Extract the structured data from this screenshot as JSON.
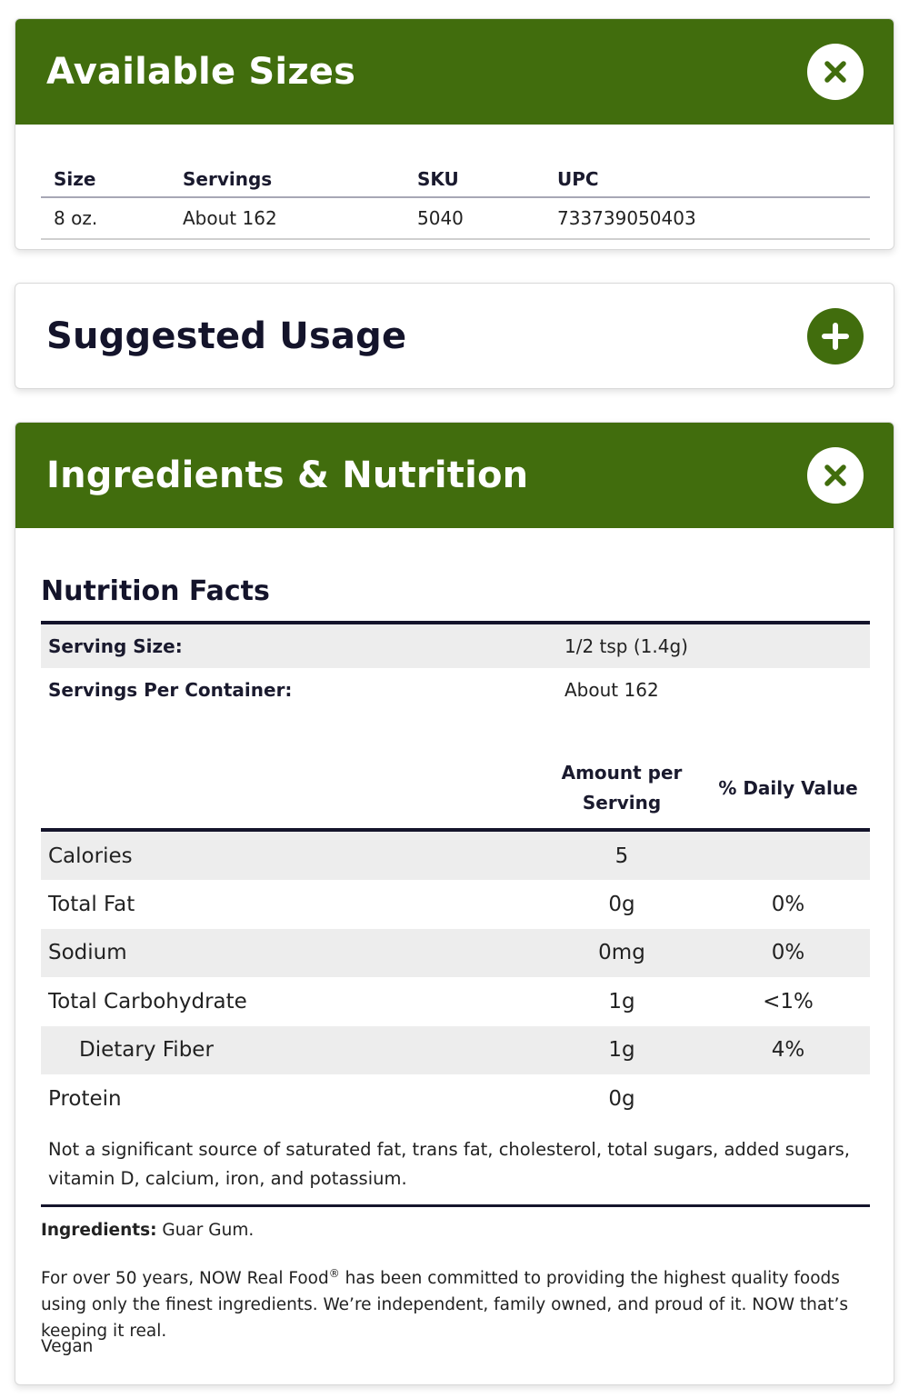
{
  "sizes": {
    "title": "Available Sizes",
    "headers": [
      "Size",
      "Servings",
      "SKU",
      "UPC"
    ],
    "rows": [
      [
        "8 oz.",
        "About 162",
        "5040",
        "733739050403"
      ]
    ]
  },
  "usage": {
    "title": "Suggested Usage"
  },
  "ingredients": {
    "title": "Ingredients & Nutrition",
    "nutrition_facts_title": "Nutrition Facts",
    "serving_size_label": "Serving Size:",
    "serving_size_value": "1/2 tsp (1.4g)",
    "servings_per_container_label": "Servings Per Container:",
    "servings_per_container_value": "About 162",
    "col_amount": "Amount per Serving",
    "col_daily": "% Daily Value",
    "rows": [
      {
        "name": "Calories",
        "amount": "5",
        "daily": ""
      },
      {
        "name": "Total Fat",
        "amount": "0g",
        "daily": "0%"
      },
      {
        "name": "Sodium",
        "amount": "0mg",
        "daily": "0%"
      },
      {
        "name": "Total Carbohydrate",
        "amount": "1g",
        "daily": "<1%"
      },
      {
        "name": "Dietary Fiber",
        "amount": "1g",
        "daily": "4%"
      },
      {
        "name": "Protein",
        "amount": "0g",
        "daily": ""
      }
    ],
    "note": "Not a significant source of saturated fat, trans fat, cholesterol, total sugars, added sugars, vitamin D, calcium, iron, and potassium.",
    "ingredients_label": "Ingredients:",
    "ingredients_value": " Guar Gum.",
    "brand_text_1": "For over 50 years, NOW Real Food",
    "brand_reg": "®",
    "brand_text_2": " has been committed to providing the highest quality foods using only the finest ingredients. We’re independent, family owned, and proud of it. NOW that’s keeping it real.",
    "vegan": "Vegan"
  },
  "colors": {
    "brand_green": "#416d0d",
    "text_dark": "#14142b",
    "row_shade": "#ededed"
  },
  "icons": {
    "close": "close-icon",
    "expand": "plus-icon"
  }
}
